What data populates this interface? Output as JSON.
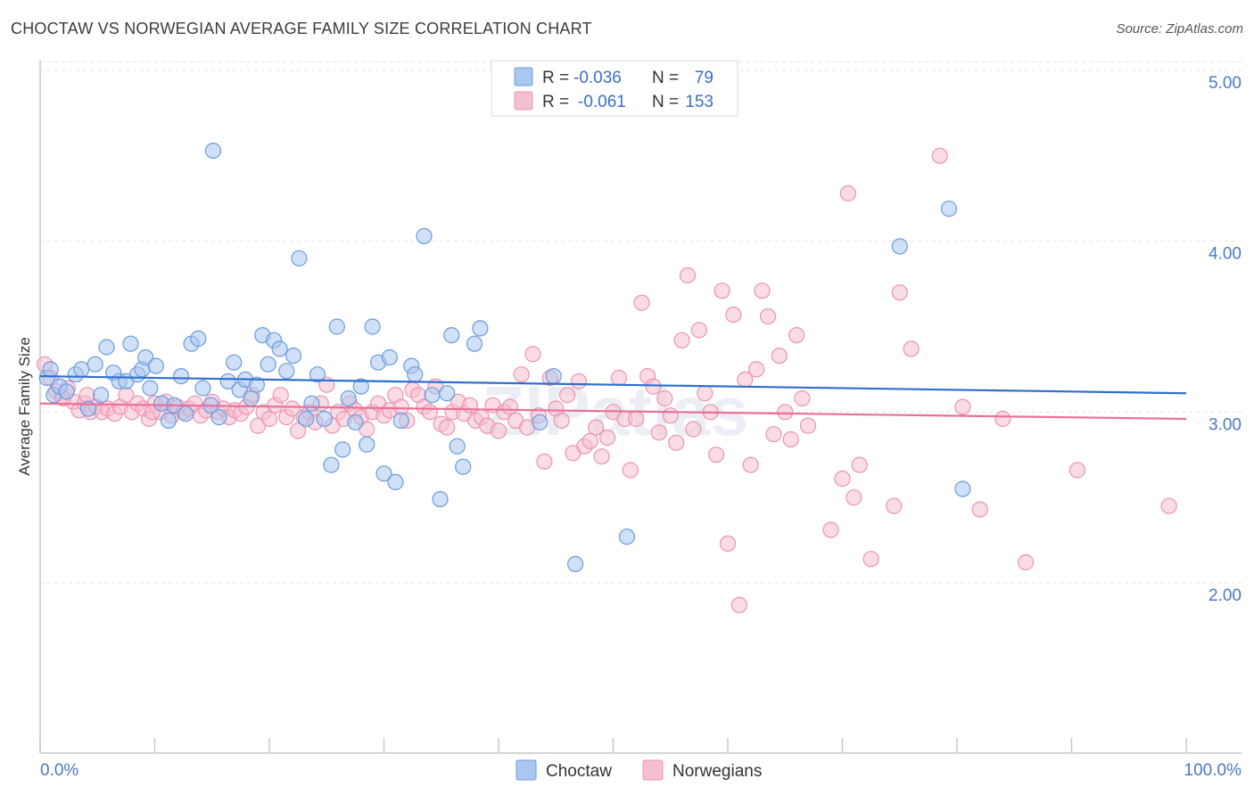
{
  "header": {
    "title": "CHOCTAW VS NORWEGIAN AVERAGE FAMILY SIZE CORRELATION CHART",
    "source": "Source: ZipAtlas.com"
  },
  "watermark": "ZIPatlas",
  "colors": {
    "choctaw_fill": "#a9c7ef",
    "choctaw_stroke": "#6b9bde",
    "choctaw_line": "#2f6fcf",
    "norwegian_fill": "#f6bfd0",
    "norwegian_stroke": "#ec93b1",
    "norwegian_line": "#e8709a",
    "axis_label": "#4a78c8"
  },
  "legend": {
    "rows": [
      {
        "r_label": "R =",
        "r_value": "-0.036",
        "n_label": "N =",
        "n_value": "79"
      },
      {
        "r_label": "R =",
        "r_value": "-0.061",
        "n_label": "N =",
        "n_value": "153"
      }
    ]
  },
  "chart_data": {
    "type": "scatter",
    "title": "CHOCTAW VS NORWEGIAN AVERAGE FAMILY SIZE CORRELATION CHART",
    "xlabel": "",
    "ylabel": "Average Family Size",
    "x_tick_labels": [
      "0.0%",
      "100.0%"
    ],
    "y_tick_labels": [
      "2.00",
      "3.00",
      "4.00",
      "5.00"
    ],
    "y_ticks": [
      2,
      3,
      4,
      5
    ],
    "xlim": [
      0,
      100
    ],
    "ylim": [
      1.2,
      5.2
    ],
    "grid": "horizontal dashed",
    "legend_position": "top-center",
    "series": [
      {
        "name": "Choctaw",
        "trend": {
          "x0": 0,
          "y0": 3.21,
          "x1": 100,
          "y1": 3.11
        },
        "points": [
          [
            0.6,
            3.2
          ],
          [
            1.2,
            3.1
          ],
          [
            1.7,
            3.15
          ],
          [
            2.3,
            3.12
          ],
          [
            3.1,
            3.22
          ],
          [
            3.6,
            3.25
          ],
          [
            4.2,
            3.02
          ],
          [
            4.8,
            3.28
          ],
          [
            5.3,
            3.1
          ],
          [
            5.8,
            3.38
          ],
          [
            6.4,
            3.23
          ],
          [
            6.9,
            3.18
          ],
          [
            7.5,
            3.18
          ],
          [
            7.9,
            3.4
          ],
          [
            8.5,
            3.22
          ],
          [
            8.9,
            3.25
          ],
          [
            9.2,
            3.32
          ],
          [
            9.6,
            3.14
          ],
          [
            10.1,
            3.27
          ],
          [
            10.6,
            3.05
          ],
          [
            11.2,
            2.95
          ],
          [
            11.7,
            3.04
          ],
          [
            12.3,
            3.21
          ],
          [
            12.7,
            2.99
          ],
          [
            13.2,
            3.4
          ],
          [
            13.8,
            3.43
          ],
          [
            14.2,
            3.14
          ],
          [
            15.1,
            4.53
          ],
          [
            15.6,
            2.97
          ],
          [
            16.4,
            3.18
          ],
          [
            16.9,
            3.29
          ],
          [
            17.4,
            3.13
          ],
          [
            17.9,
            3.19
          ],
          [
            18.4,
            3.08
          ],
          [
            18.9,
            3.16
          ],
          [
            19.4,
            3.45
          ],
          [
            19.9,
            3.28
          ],
          [
            20.4,
            3.42
          ],
          [
            20.9,
            3.37
          ],
          [
            21.5,
            3.24
          ],
          [
            22.1,
            3.33
          ],
          [
            22.6,
            3.9
          ],
          [
            23.2,
            2.96
          ],
          [
            23.7,
            3.05
          ],
          [
            24.2,
            3.22
          ],
          [
            24.8,
            2.96
          ],
          [
            25.4,
            2.69
          ],
          [
            25.9,
            3.5
          ],
          [
            26.4,
            2.78
          ],
          [
            26.9,
            3.08
          ],
          [
            27.5,
            2.94
          ],
          [
            28.0,
            3.15
          ],
          [
            28.5,
            2.81
          ],
          [
            29.0,
            3.5
          ],
          [
            29.5,
            3.29
          ],
          [
            30.0,
            2.64
          ],
          [
            30.5,
            3.32
          ],
          [
            31.0,
            2.59
          ],
          [
            31.5,
            2.95
          ],
          [
            32.4,
            3.27
          ],
          [
            32.7,
            3.22
          ],
          [
            33.5,
            4.03
          ],
          [
            34.2,
            3.1
          ],
          [
            34.9,
            2.49
          ],
          [
            35.5,
            3.11
          ],
          [
            35.9,
            3.45
          ],
          [
            36.4,
            2.8
          ],
          [
            36.9,
            2.68
          ],
          [
            37.9,
            3.4
          ],
          [
            38.4,
            3.49
          ],
          [
            43.6,
            2.94
          ],
          [
            44.8,
            3.21
          ],
          [
            46.7,
            2.11
          ],
          [
            51.2,
            2.27
          ],
          [
            75.0,
            3.97
          ],
          [
            79.3,
            4.19
          ],
          [
            80.5,
            2.55
          ],
          [
            0.9,
            3.25
          ],
          [
            14.9,
            3.04
          ]
        ]
      },
      {
        "name": "Norwegians",
        "trend": {
          "x0": 0,
          "y0": 3.05,
          "x1": 100,
          "y1": 2.96
        },
        "points": [
          [
            0.4,
            3.28
          ],
          [
            0.9,
            3.2
          ],
          [
            1.4,
            3.12
          ],
          [
            1.9,
            3.09
          ],
          [
            2.4,
            3.14
          ],
          [
            2.9,
            3.06
          ],
          [
            3.4,
            3.01
          ],
          [
            3.9,
            3.05
          ],
          [
            4.4,
            3.0
          ],
          [
            4.9,
            3.03
          ],
          [
            5.4,
            3.0
          ],
          [
            5.9,
            3.02
          ],
          [
            6.5,
            2.99
          ],
          [
            7.0,
            3.03
          ],
          [
            7.5,
            3.1
          ],
          [
            8.0,
            3.0
          ],
          [
            8.5,
            3.05
          ],
          [
            9.0,
            3.02
          ],
          [
            9.5,
            2.96
          ],
          [
            10.0,
            3.05
          ],
          [
            10.5,
            3.0
          ],
          [
            11.0,
            3.06
          ],
          [
            11.5,
            2.98
          ],
          [
            12.0,
            3.03
          ],
          [
            12.5,
            3.0
          ],
          [
            13.0,
            3.02
          ],
          [
            13.5,
            3.05
          ],
          [
            14.0,
            2.98
          ],
          [
            14.5,
            3.01
          ],
          [
            15.0,
            3.06
          ],
          [
            15.5,
            3.0
          ],
          [
            16.0,
            3.02
          ],
          [
            16.5,
            2.97
          ],
          [
            17.0,
            3.01
          ],
          [
            17.5,
            2.99
          ],
          [
            18.0,
            3.03
          ],
          [
            18.5,
            3.1
          ],
          [
            19.0,
            2.92
          ],
          [
            19.5,
            3.0
          ],
          [
            20.0,
            2.96
          ],
          [
            20.5,
            3.04
          ],
          [
            21.0,
            3.1
          ],
          [
            21.5,
            2.97
          ],
          [
            22.0,
            3.02
          ],
          [
            22.5,
            2.89
          ],
          [
            23.0,
            2.97
          ],
          [
            23.5,
            3.0
          ],
          [
            24.0,
            2.94
          ],
          [
            24.5,
            3.05
          ],
          [
            25.0,
            3.16
          ],
          [
            25.5,
            2.92
          ],
          [
            26.0,
            3.0
          ],
          [
            26.5,
            2.96
          ],
          [
            27.0,
            3.05
          ],
          [
            27.5,
            3.01
          ],
          [
            28.0,
            2.97
          ],
          [
            28.5,
            2.9
          ],
          [
            29.0,
            3.0
          ],
          [
            29.5,
            3.05
          ],
          [
            30.0,
            2.98
          ],
          [
            30.5,
            3.01
          ],
          [
            31.0,
            3.1
          ],
          [
            31.5,
            3.03
          ],
          [
            32.0,
            2.95
          ],
          [
            32.5,
            3.13
          ],
          [
            33.0,
            3.1
          ],
          [
            33.5,
            3.03
          ],
          [
            34.0,
            3.0
          ],
          [
            34.5,
            3.15
          ],
          [
            35.0,
            2.93
          ],
          [
            35.5,
            2.91
          ],
          [
            36.0,
            3.0
          ],
          [
            36.5,
            3.06
          ],
          [
            37.0,
            2.99
          ],
          [
            37.5,
            3.04
          ],
          [
            38.0,
            2.95
          ],
          [
            38.5,
            2.97
          ],
          [
            39.0,
            2.92
          ],
          [
            39.5,
            3.04
          ],
          [
            40.0,
            2.89
          ],
          [
            40.5,
            3.0
          ],
          [
            41.0,
            3.03
          ],
          [
            41.5,
            2.95
          ],
          [
            42.0,
            3.22
          ],
          [
            42.5,
            2.91
          ],
          [
            43.0,
            3.34
          ],
          [
            43.5,
            2.98
          ],
          [
            44.0,
            2.71
          ],
          [
            44.5,
            3.2
          ],
          [
            45.0,
            3.02
          ],
          [
            45.5,
            2.95
          ],
          [
            46.0,
            3.1
          ],
          [
            46.5,
            2.76
          ],
          [
            47.0,
            3.18
          ],
          [
            47.5,
            2.8
          ],
          [
            48.0,
            2.83
          ],
          [
            48.5,
            2.91
          ],
          [
            49.0,
            2.74
          ],
          [
            49.5,
            2.85
          ],
          [
            50.0,
            3.0
          ],
          [
            50.5,
            3.2
          ],
          [
            51.0,
            2.96
          ],
          [
            51.5,
            2.66
          ],
          [
            52.0,
            2.96
          ],
          [
            52.5,
            3.64
          ],
          [
            53.0,
            3.21
          ],
          [
            53.5,
            3.15
          ],
          [
            54.0,
            2.88
          ],
          [
            54.5,
            3.08
          ],
          [
            55.0,
            2.98
          ],
          [
            55.5,
            2.82
          ],
          [
            56.0,
            3.42
          ],
          [
            56.5,
            3.8
          ],
          [
            57.0,
            2.9
          ],
          [
            57.5,
            3.48
          ],
          [
            58.0,
            3.11
          ],
          [
            58.5,
            3.0
          ],
          [
            59.0,
            2.75
          ],
          [
            59.5,
            3.71
          ],
          [
            60.0,
            2.23
          ],
          [
            60.5,
            3.57
          ],
          [
            61.0,
            1.87
          ],
          [
            61.5,
            3.19
          ],
          [
            62.0,
            2.69
          ],
          [
            62.5,
            3.25
          ],
          [
            63.0,
            3.71
          ],
          [
            63.5,
            3.56
          ],
          [
            64.0,
            2.87
          ],
          [
            64.5,
            3.33
          ],
          [
            65.0,
            3.0
          ],
          [
            65.5,
            2.84
          ],
          [
            66.0,
            3.45
          ],
          [
            66.5,
            3.08
          ],
          [
            67.0,
            2.92
          ],
          [
            70.5,
            4.28
          ],
          [
            71.0,
            2.5
          ],
          [
            71.5,
            2.69
          ],
          [
            70.0,
            2.61
          ],
          [
            69.0,
            2.31
          ],
          [
            72.5,
            2.14
          ],
          [
            74.5,
            2.45
          ],
          [
            75.0,
            3.7
          ],
          [
            76.0,
            3.37
          ],
          [
            78.5,
            4.5
          ],
          [
            80.5,
            3.03
          ],
          [
            82.0,
            2.43
          ],
          [
            84.0,
            2.96
          ],
          [
            86.0,
            2.12
          ],
          [
            90.5,
            2.66
          ],
          [
            98.5,
            2.45
          ],
          [
            2.0,
            3.08
          ],
          [
            4.1,
            3.1
          ],
          [
            9.8,
            3.0
          ]
        ]
      }
    ]
  }
}
